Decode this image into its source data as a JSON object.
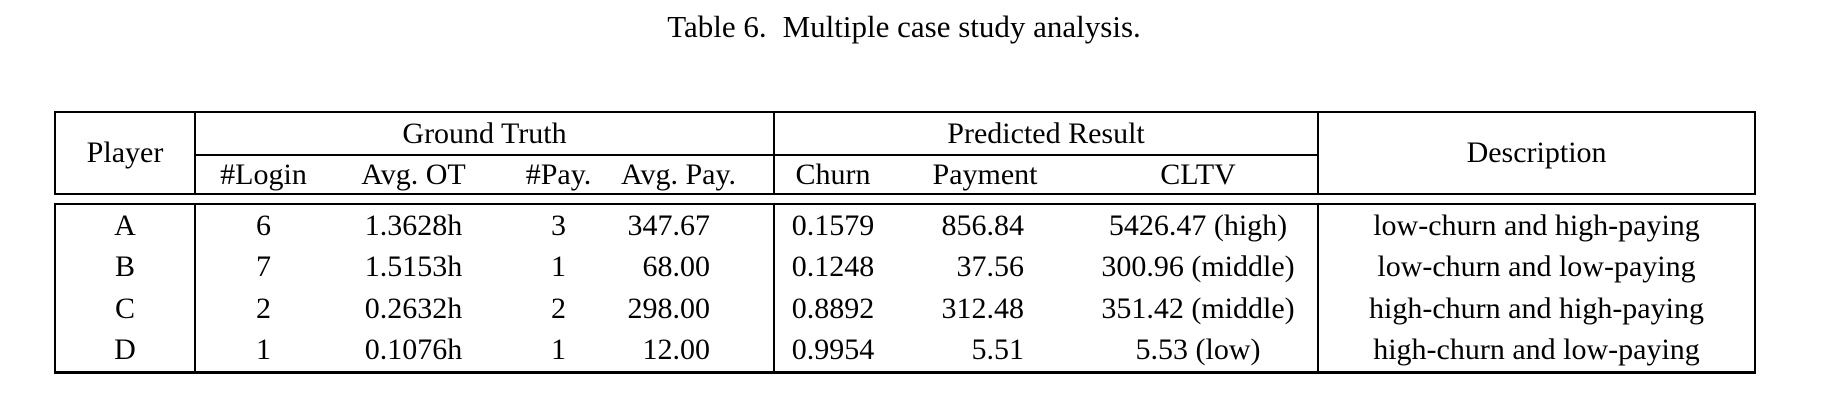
{
  "caption": {
    "label": "Table 6.",
    "text": "Multiple case study analysis."
  },
  "table": {
    "groups": {
      "ground_truth": "Ground Truth",
      "predicted_result": "Predicted Result"
    },
    "headers": {
      "player": "Player",
      "login": "#Login",
      "avg_ot": "Avg. OT",
      "pay": "#Pay.",
      "avg_pay": "Avg. Pay.",
      "churn": "Churn",
      "payment": "Payment",
      "cltv": "CLTV",
      "description": "Description"
    },
    "rows": [
      {
        "player": "A",
        "login": "6",
        "avg_ot": "1.3628h",
        "pay": "3",
        "avg_pay": "347.67",
        "churn": "0.1579",
        "payment": "856.84",
        "cltv": "5426.47 (high)",
        "description": "low-churn and high-paying"
      },
      {
        "player": "B",
        "login": "7",
        "avg_ot": "1.5153h",
        "pay": "1",
        "avg_pay": "68.00",
        "churn": "0.1248",
        "payment": "37.56",
        "cltv": "300.96 (middle)",
        "description": "low-churn and low-paying"
      },
      {
        "player": "C",
        "login": "2",
        "avg_ot": "0.2632h",
        "pay": "2",
        "avg_pay": "298.00",
        "churn": "0.8892",
        "payment": "312.48",
        "cltv": "351.42 (middle)",
        "description": "high-churn and high-paying"
      },
      {
        "player": "D",
        "login": "1",
        "avg_ot": "0.1076h",
        "pay": "1",
        "avg_pay": "12.00",
        "churn": "0.9954",
        "payment": "5.51",
        "cltv": "5.53 (low)",
        "description": "high-churn and low-paying"
      }
    ]
  }
}
